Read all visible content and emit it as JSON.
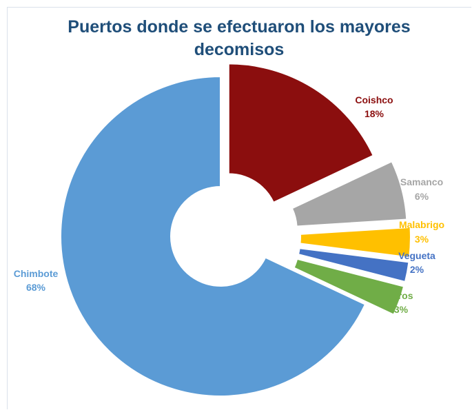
{
  "chart_data": {
    "type": "pie",
    "donut": true,
    "title": "Puertos donde se efectuaron los mayores decomisos",
    "title_lines": [
      "Puertos donde se efectuaron los mayores",
      "decomisos"
    ],
    "title_color": "#1f4e79",
    "slices": [
      {
        "label": "Coishco",
        "value": 18,
        "value_label": "18%",
        "color": "#8b0e0e"
      },
      {
        "label": "Samanco",
        "value": 6,
        "value_label": "6%",
        "color": "#a6a6a6"
      },
      {
        "label": "Malabrigo",
        "value": 3,
        "value_label": "3%",
        "color": "#ffc000"
      },
      {
        "label": "Vegueta",
        "value": 2,
        "value_label": "2%",
        "color": "#4472c4"
      },
      {
        "label": "otros",
        "value": 3,
        "value_label": "3%",
        "color": "#70ad47"
      },
      {
        "label": "Chimbote",
        "value": 68,
        "value_label": "68%",
        "color": "#5b9bd5"
      }
    ],
    "legend": "none"
  }
}
